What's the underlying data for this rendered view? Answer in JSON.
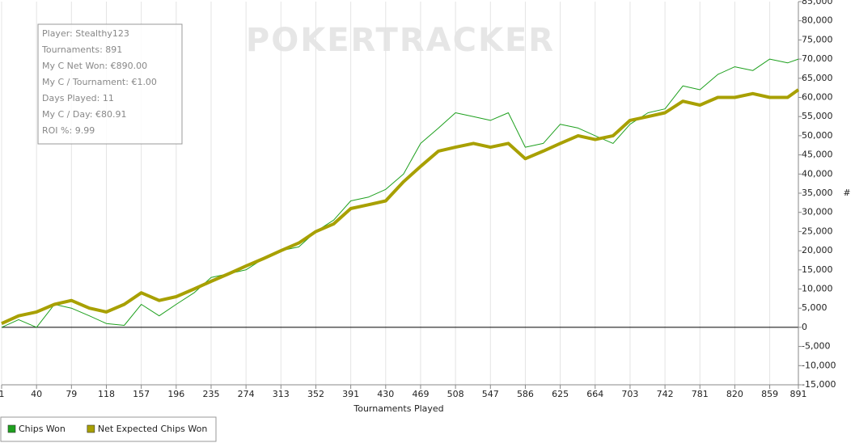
{
  "chart_data": {
    "type": "line",
    "watermark": "POKERTRACKER",
    "annotations": [
      "Player: Stealthy123",
      "Tournaments: 891",
      "My C Net Won: €890.00",
      "My C / Tournament: €1.00",
      "Days Played: 11",
      "My C / Day: €80.91",
      "ROI %: 9.99"
    ],
    "xlabel": "Tournaments Played",
    "ylabel": "#",
    "x": [
      1,
      20,
      40,
      60,
      79,
      99,
      118,
      138,
      157,
      177,
      196,
      216,
      235,
      255,
      274,
      294,
      313,
      333,
      352,
      372,
      391,
      411,
      430,
      450,
      469,
      489,
      508,
      528,
      547,
      567,
      586,
      606,
      625,
      645,
      664,
      684,
      703,
      723,
      742,
      762,
      781,
      801,
      820,
      840,
      859,
      879,
      891
    ],
    "series": [
      {
        "name": "Chips Won",
        "color": "#1ea01e",
        "width": 1,
        "values": [
          0,
          2000,
          0,
          6000,
          5000,
          3000,
          1000,
          500,
          6000,
          3000,
          6000,
          9000,
          13000,
          14000,
          15000,
          18000,
          20000,
          21000,
          25000,
          28000,
          33000,
          34000,
          36000,
          40000,
          48000,
          52000,
          56000,
          55000,
          54000,
          56000,
          47000,
          48000,
          53000,
          52000,
          50000,
          48000,
          53000,
          56000,
          57000,
          63000,
          62000,
          66000,
          68000,
          67000,
          70000,
          69000,
          70000
        ]
      },
      {
        "name": "Net Expected Chips Won",
        "color": "#a8a000",
        "width": 4,
        "values": [
          1000,
          3000,
          4000,
          6000,
          7000,
          5000,
          4000,
          6000,
          9000,
          7000,
          8000,
          10000,
          12000,
          14000,
          16000,
          18000,
          20000,
          22000,
          25000,
          27000,
          31000,
          32000,
          33000,
          38000,
          42000,
          46000,
          47000,
          48000,
          47000,
          48000,
          44000,
          46000,
          48000,
          50000,
          49000,
          50000,
          54000,
          55000,
          56000,
          59000,
          58000,
          60000,
          60000,
          61000,
          60000,
          60000,
          62000
        ]
      }
    ],
    "xlim": [
      1,
      891
    ],
    "xticks": [
      1,
      40,
      79,
      118,
      157,
      196,
      235,
      274,
      313,
      352,
      391,
      430,
      469,
      508,
      547,
      586,
      625,
      664,
      703,
      742,
      781,
      820,
      859,
      891
    ],
    "ylim": [
      -15000,
      85000
    ],
    "yticks": [
      {
        "value": -15000,
        "label": "-15,000"
      },
      {
        "value": -10000,
        "label": "-10,000"
      },
      {
        "value": -5000,
        "label": "-5,000"
      },
      0,
      {
        "value": 5000,
        "label": "5,000"
      },
      {
        "value": 10000,
        "label": "10,000"
      },
      {
        "value": 15000,
        "label": "15,000"
      },
      {
        "value": 20000,
        "label": "20,000"
      },
      {
        "value": 25000,
        "label": "25,000"
      },
      {
        "value": 30000,
        "label": "30,000"
      },
      {
        "value": 35000,
        "label": "35,000"
      },
      {
        "value": 40000,
        "label": "40,000"
      },
      {
        "value": 45000,
        "label": "45,000"
      },
      {
        "value": 50000,
        "label": "50,000"
      },
      {
        "value": 55000,
        "label": "55,000"
      },
      {
        "value": 60000,
        "label": "60,000"
      },
      {
        "value": 65000,
        "label": "65,000"
      },
      {
        "value": 70000,
        "label": "70,000"
      },
      {
        "value": 75000,
        "label": "75,000"
      },
      {
        "value": 80000,
        "label": "80,000"
      },
      {
        "value": 85000,
        "label": "85,000"
      }
    ],
    "grid": "x"
  }
}
